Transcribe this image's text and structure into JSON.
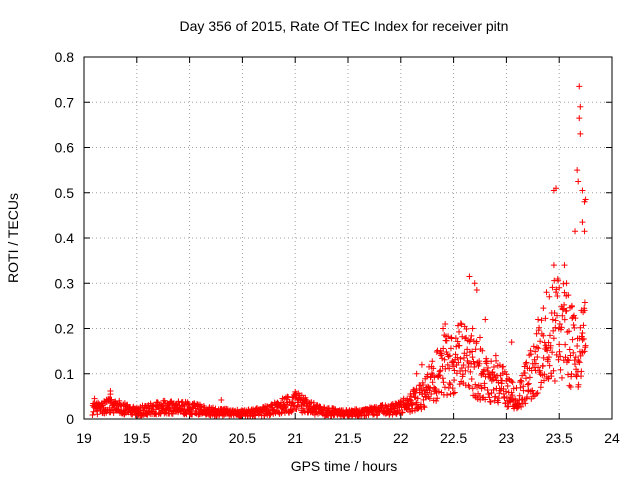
{
  "colors": {
    "background": "#ffffff",
    "axis": "#000000",
    "grid": "#a0a0a0",
    "series": "#ff0000"
  },
  "chart_data": {
    "type": "scatter",
    "title": "Day 356 of 2015, Rate Of TEC Index for receiver pitn",
    "xlabel": "GPS time / hours",
    "ylabel": "ROTI / TECUs",
    "xlim": [
      19,
      24
    ],
    "ylim": [
      0,
      0.8
    ],
    "x_ticks": [
      19,
      19.5,
      20,
      20.5,
      21,
      21.5,
      22,
      22.5,
      23,
      23.5,
      24
    ],
    "x_tick_labels": [
      "19",
      "19.5",
      "20",
      "20.5",
      "21",
      "21.5",
      "22",
      "22.5",
      "23",
      "23.5",
      "24"
    ],
    "y_ticks": [
      0,
      0.1,
      0.2,
      0.3,
      0.4,
      0.5,
      0.6,
      0.7,
      0.8
    ],
    "y_tick_labels": [
      "0",
      "0.1",
      "0.2",
      "0.3",
      "0.4",
      "0.5",
      "0.6",
      "0.7",
      "0.8"
    ],
    "grid": true,
    "marker": "plus",
    "series": [
      {
        "name": "ROTI",
        "x_start": 19.08,
        "x_end": 23.75,
        "baseline_envelope": [
          [
            19.08,
            0.025
          ],
          [
            19.25,
            0.035
          ],
          [
            19.5,
            0.02
          ],
          [
            19.75,
            0.03
          ],
          [
            20.0,
            0.028
          ],
          [
            20.25,
            0.018
          ],
          [
            20.5,
            0.015
          ],
          [
            20.75,
            0.022
          ],
          [
            21.0,
            0.045
          ],
          [
            21.25,
            0.02
          ],
          [
            21.5,
            0.015
          ],
          [
            21.75,
            0.02
          ],
          [
            22.0,
            0.03
          ],
          [
            22.2,
            0.06
          ],
          [
            22.35,
            0.12
          ],
          [
            22.45,
            0.15
          ],
          [
            22.6,
            0.16
          ],
          [
            22.75,
            0.12
          ],
          [
            22.9,
            0.1
          ],
          [
            23.0,
            0.08
          ],
          [
            23.1,
            0.05
          ],
          [
            23.2,
            0.1
          ],
          [
            23.3,
            0.15
          ],
          [
            23.4,
            0.2
          ],
          [
            23.5,
            0.25
          ],
          [
            23.6,
            0.2
          ],
          [
            23.7,
            0.15
          ],
          [
            23.75,
            0.22
          ]
        ],
        "outliers": [
          [
            19.1,
            0.045
          ],
          [
            19.25,
            0.062
          ],
          [
            19.25,
            0.055
          ],
          [
            20.3,
            0.042
          ],
          [
            21.0,
            0.06
          ],
          [
            22.15,
            0.1
          ],
          [
            22.2,
            0.12
          ],
          [
            22.4,
            0.2
          ],
          [
            22.42,
            0.21
          ],
          [
            22.65,
            0.315
          ],
          [
            22.7,
            0.3
          ],
          [
            22.72,
            0.285
          ],
          [
            22.68,
            0.2
          ],
          [
            22.8,
            0.22
          ],
          [
            22.75,
            0.18
          ],
          [
            22.9,
            0.14
          ],
          [
            23.05,
            0.17
          ],
          [
            23.3,
            0.22
          ],
          [
            23.35,
            0.245
          ],
          [
            23.38,
            0.28
          ],
          [
            23.45,
            0.34
          ],
          [
            23.45,
            0.505
          ],
          [
            23.47,
            0.51
          ],
          [
            23.55,
            0.34
          ],
          [
            23.57,
            0.3
          ],
          [
            23.5,
            0.29
          ],
          [
            23.62,
            0.25
          ],
          [
            23.65,
            0.415
          ],
          [
            23.67,
            0.55
          ],
          [
            23.68,
            0.525
          ],
          [
            23.69,
            0.735
          ],
          [
            23.7,
            0.69
          ],
          [
            23.69,
            0.665
          ],
          [
            23.7,
            0.63
          ],
          [
            23.72,
            0.505
          ],
          [
            23.74,
            0.48
          ],
          [
            23.75,
            0.485
          ],
          [
            23.72,
            0.435
          ],
          [
            23.74,
            0.415
          ],
          [
            23.71,
            0.24
          ],
          [
            23.74,
            0.24
          ],
          [
            23.72,
            0.19
          ],
          [
            23.68,
            0.13
          ],
          [
            23.66,
            0.11
          ],
          [
            23.4,
            0.09
          ]
        ]
      }
    ]
  }
}
